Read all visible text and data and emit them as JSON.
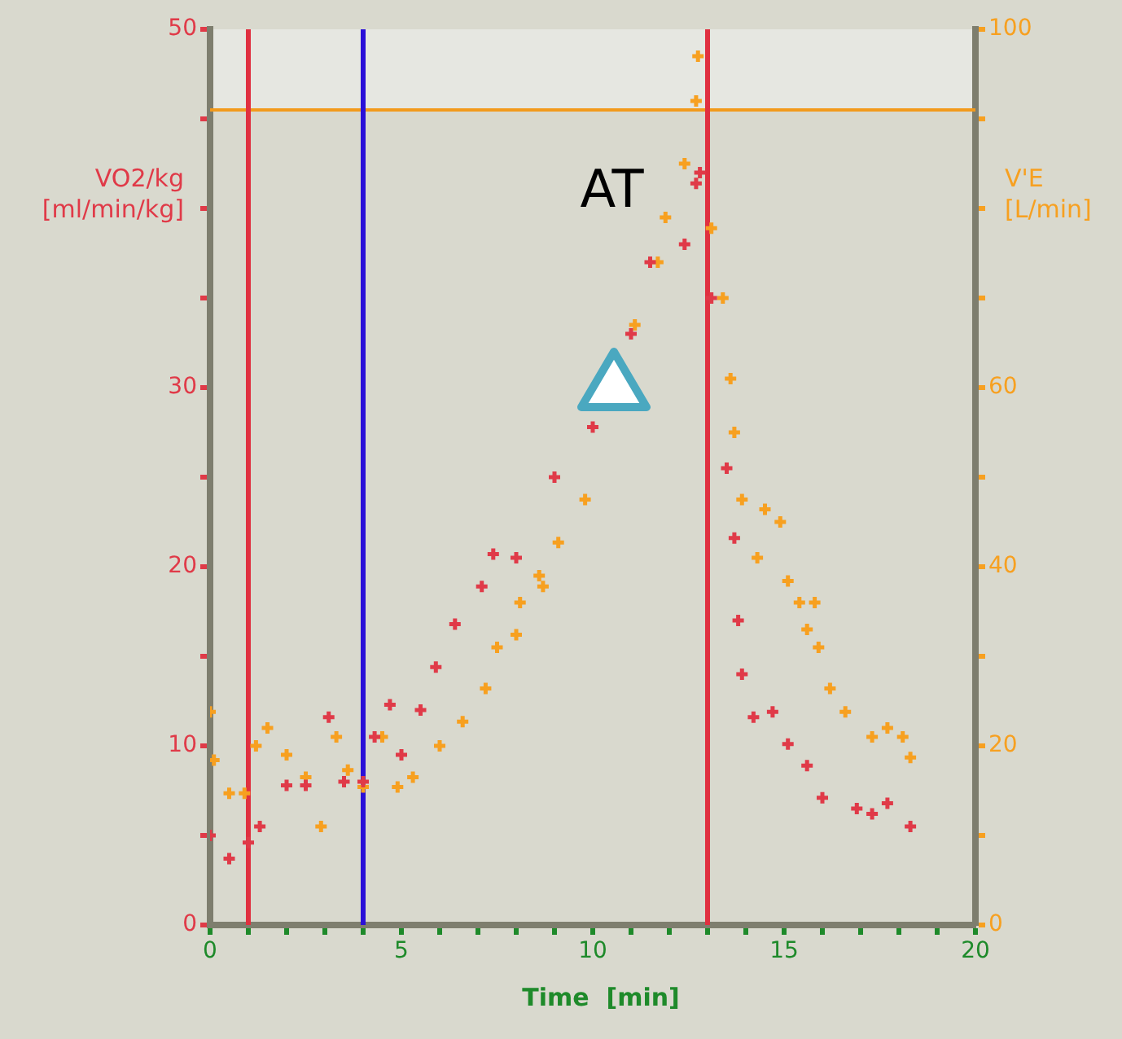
{
  "chart_data": {
    "type": "scatter",
    "xlabel": "Time  [min]",
    "ylabel": "VO2/kg\n[ml/min/kg]",
    "y2label": "V'E\n[L/min]",
    "marker": "cross",
    "grid": false,
    "legend": false,
    "xlim": [
      0,
      20
    ],
    "xticks": [
      0,
      {
        "value": 1,
        "label": null
      },
      {
        "value": 2,
        "label": null
      },
      {
        "value": 3,
        "label": null
      },
      {
        "value": 4,
        "label": null
      },
      5,
      {
        "value": 6,
        "label": null
      },
      {
        "value": 7,
        "label": null
      },
      {
        "value": 8,
        "label": null
      },
      {
        "value": 9,
        "label": null
      },
      10,
      {
        "value": 11,
        "label": null
      },
      {
        "value": 12,
        "label": null
      },
      {
        "value": 13,
        "label": null
      },
      {
        "value": 14,
        "label": null
      },
      15,
      {
        "value": 16,
        "label": null
      },
      {
        "value": 17,
        "label": null
      },
      {
        "value": 18,
        "label": null
      },
      {
        "value": 19,
        "label": null
      },
      20
    ],
    "ylim": [
      0,
      50
    ],
    "yticks": [
      0,
      {
        "value": 5,
        "label": null
      },
      10,
      {
        "value": 15,
        "label": null
      },
      20,
      {
        "value": 25,
        "label": null
      },
      30,
      {
        "value": 35,
        "label": null
      },
      {
        "value": 40,
        "label": null
      },
      {
        "value": 45,
        "label": null
      },
      50
    ],
    "y2lim": [
      0,
      100
    ],
    "y2ticks": [
      0,
      {
        "value": 10,
        "label": null
      },
      20,
      {
        "value": 30,
        "label": null
      },
      40,
      {
        "value": 50,
        "label": null
      },
      60,
      {
        "value": 70,
        "label": null
      },
      {
        "value": 80,
        "label": null
      },
      {
        "value": 90,
        "label": null
      },
      100
    ],
    "series": [
      {
        "color": "#e03a48",
        "x": [
          0,
          0.5,
          1,
          1.3,
          2,
          2.5,
          3.1,
          3.5,
          4,
          4.3,
          4.7,
          5,
          5.5,
          5.9,
          6.4,
          7.1,
          7.4,
          8,
          9,
          10,
          11,
          11.5,
          12.4,
          12.7,
          12.8,
          13.1,
          13.5,
          13.7,
          13.8,
          13.9,
          14.2,
          14.7,
          15.1,
          15.6,
          16,
          16.9,
          17.3,
          17.7,
          18.3
        ],
        "values": [
          5,
          3.7,
          4.6,
          5.5,
          7.8,
          7.8,
          11.6,
          8,
          8,
          10.5,
          12.3,
          9.5,
          12,
          14.4,
          16.8,
          18.9,
          20.7,
          20.5,
          25,
          27.8,
          33,
          37,
          38,
          41.4,
          42,
          35,
          25.5,
          21.6,
          17,
          14,
          11.6,
          11.9,
          10.1,
          8.9,
          7.1,
          6.5,
          6.2,
          6.8,
          5.5
        ]
      },
      {
        "color": "#f7a020",
        "axis": "y2",
        "x": [
          0,
          0.1,
          0.5,
          0.9,
          1.2,
          1.5,
          2,
          2.5,
          2.9,
          3.3,
          3.6,
          4,
          4.5,
          4.9,
          5.3,
          6,
          6.6,
          7.2,
          7.5,
          8,
          8.1,
          8.6,
          8.7,
          9.1,
          9.8,
          11.1,
          11.7,
          11.9,
          12.4,
          12.7,
          12.75,
          13.1,
          13.4,
          13.6,
          13.7,
          13.9,
          14.3,
          14.5,
          14.9,
          15.1,
          15.4,
          15.6,
          15.8,
          15.9,
          16.2,
          16.6,
          17.3,
          17.7,
          18.1,
          18.3
        ],
        "values": [
          23.8,
          18.4,
          14.7,
          14.7,
          20,
          22,
          19,
          16.5,
          11,
          21,
          17.3,
          15.4,
          21,
          15.4,
          16.5,
          20,
          22.7,
          26.4,
          31,
          32.4,
          36,
          39,
          37.8,
          42.7,
          47.5,
          67,
          74,
          79,
          85,
          92,
          97,
          77.8,
          70,
          61,
          55,
          47.5,
          41,
          46.4,
          45,
          38.4,
          36,
          33,
          36,
          31,
          26.4,
          23.8,
          21,
          22,
          21,
          18.7
        ]
      }
    ],
    "ref_lines": [
      {
        "axis": "y2",
        "value": 91,
        "color": "#f29a1c"
      },
      {
        "axis": "x",
        "value": 1,
        "color": "#e03040"
      },
      {
        "axis": "x",
        "value": 4,
        "color": "#2a10d8"
      },
      {
        "axis": "x",
        "value": 13,
        "color": "#e03040"
      }
    ],
    "bands": [
      {
        "axis": "y2",
        "from": 91,
        "to": 100,
        "color": "#e6e7e1"
      }
    ],
    "annotations": [
      "AT"
    ]
  }
}
